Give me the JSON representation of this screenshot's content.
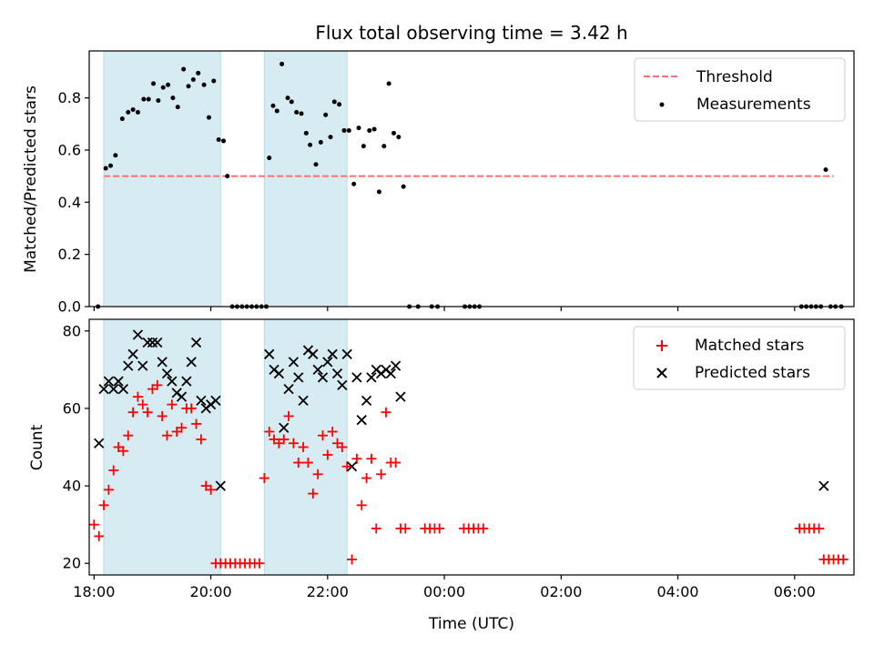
{
  "chart_data": {
    "title": "Flux total observing time = 3.42 h",
    "xlabel": "Time (UTC)",
    "x_ticks": [
      "18:00",
      "20:00",
      "22:00",
      "00:00",
      "02:00",
      "04:00",
      "06:00"
    ],
    "xlim": [
      "17:55",
      "07:01"
    ],
    "observing_windows": [
      [
        "18:10",
        "20:10"
      ],
      [
        "20:55",
        "22:20"
      ]
    ],
    "colors": {
      "window": "#add8e6",
      "threshold": "#ff6f6f",
      "measurements": "#000000",
      "matched": "#ff0000",
      "predicted": "#000000"
    },
    "panels": [
      {
        "type": "scatter",
        "ylabel": "Matched/Predicted stars",
        "ylim": [
          0,
          0.98
        ],
        "y_ticks": [
          "0.0",
          "0.2",
          "0.4",
          "0.6",
          "0.8"
        ],
        "legend": {
          "placement": "top-right",
          "entries": [
            "Threshold",
            "Measurements"
          ]
        },
        "threshold": {
          "name": "Threshold",
          "value": 0.5,
          "x_start": "18:10",
          "x_end": "06:40"
        },
        "series": [
          {
            "name": "Measurements",
            "marker": "dot",
            "x": [
              "18:04",
              "18:12",
              "18:17",
              "18:22",
              "18:29",
              "18:35",
              "18:40",
              "18:45",
              "18:51",
              "18:56",
              "19:01",
              "19:06",
              "19:11",
              "19:16",
              "19:21",
              "19:26",
              "19:32",
              "19:37",
              "19:42",
              "19:47",
              "19:53",
              "19:58",
              "20:03",
              "20:08",
              "20:13",
              "20:17",
              "20:22",
              "20:27",
              "20:32",
              "20:37",
              "20:42",
              "20:47",
              "20:52",
              "20:57",
              "21:00",
              "21:04",
              "21:08",
              "21:13",
              "21:19",
              "21:23",
              "21:28",
              "21:33",
              "21:38",
              "21:42",
              "21:48",
              "21:53",
              "21:58",
              "22:03",
              "22:07",
              "22:12",
              "22:17",
              "22:22",
              "22:27",
              "22:32",
              "22:37",
              "22:43",
              "22:48",
              "22:53",
              "22:58",
              "23:03",
              "23:08",
              "23:13",
              "23:18",
              "23:24",
              "23:33",
              "23:47",
              "23:53",
              "00:21",
              "00:26",
              "00:31",
              "00:36",
              "06:07",
              "06:12",
              "06:17",
              "06:22",
              "06:27",
              "06:32",
              "06:37",
              "06:42",
              "06:48"
            ],
            "y": [
              0.0,
              0.53,
              0.54,
              0.58,
              0.72,
              0.745,
              0.755,
              0.745,
              0.795,
              0.795,
              0.855,
              0.79,
              0.84,
              0.85,
              0.8,
              0.765,
              0.91,
              0.845,
              0.87,
              0.895,
              0.85,
              0.725,
              0.865,
              0.64,
              0.635,
              0.5,
              0.0,
              0.0,
              0.0,
              0.0,
              0.0,
              0.0,
              0.0,
              0.0,
              0.57,
              0.77,
              0.75,
              0.93,
              0.8,
              0.785,
              0.745,
              0.74,
              0.665,
              0.62,
              0.545,
              0.63,
              0.735,
              0.65,
              0.785,
              0.775,
              0.675,
              0.675,
              0.47,
              0.685,
              0.615,
              0.675,
              0.68,
              0.44,
              0.615,
              0.855,
              0.665,
              0.65,
              0.46,
              0.0,
              0.0,
              0.0,
              0.0,
              0.0,
              0.0,
              0.0,
              0.0,
              0.0,
              0.0,
              0.0,
              0.0,
              0.0,
              0.525,
              0.0,
              0.0,
              0.0
            ]
          }
        ]
      },
      {
        "type": "scatter",
        "ylabel": "Count",
        "ylim": [
          17,
          83
        ],
        "y_ticks": [
          "20",
          "40",
          "60",
          "80"
        ],
        "legend": {
          "placement": "top-right",
          "entries": [
            "Matched stars",
            "Predicted stars"
          ]
        },
        "series": [
          {
            "name": "Matched stars",
            "marker": "plus",
            "x": [
              "18:00",
              "18:05",
              "18:10",
              "18:15",
              "18:20",
              "18:25",
              "18:30",
              "18:35",
              "18:40",
              "18:45",
              "18:50",
              "18:55",
              "19:00",
              "19:05",
              "19:10",
              "19:15",
              "19:20",
              "19:25",
              "19:30",
              "19:35",
              "19:40",
              "19:45",
              "19:50",
              "19:55",
              "20:00",
              "20:05",
              "20:10",
              "20:15",
              "20:20",
              "20:25",
              "20:30",
              "20:35",
              "20:40",
              "20:45",
              "20:50",
              "20:55",
              "21:00",
              "21:05",
              "21:10",
              "21:15",
              "21:20",
              "21:25",
              "21:30",
              "21:35",
              "21:40",
              "21:45",
              "21:50",
              "21:55",
              "22:00",
              "22:05",
              "22:10",
              "22:15",
              "22:20",
              "22:25",
              "22:30",
              "22:35",
              "22:40",
              "22:45",
              "22:50",
              "22:55",
              "23:00",
              "23:05",
              "23:10",
              "23:15",
              "23:20",
              "23:40",
              "23:45",
              "23:50",
              "23:55",
              "00:20",
              "00:25",
              "00:30",
              "00:35",
              "00:40",
              "06:05",
              "06:10",
              "06:15",
              "06:20",
              "06:25",
              "06:30",
              "06:35",
              "06:40",
              "06:45",
              "06:50"
            ],
            "y": [
              30,
              27,
              35,
              39,
              44,
              50,
              49,
              53,
              59,
              63,
              61,
              59,
              65,
              66,
              58,
              53,
              61,
              54,
              55,
              60,
              60,
              56,
              52,
              40,
              39,
              20,
              20,
              20,
              20,
              20,
              20,
              20,
              20,
              20,
              20,
              42,
              54,
              52,
              51,
              52,
              58,
              51,
              46,
              50,
              46,
              38,
              43,
              53,
              48,
              54,
              51,
              50,
              45,
              21,
              47,
              35,
              42,
              47,
              29,
              43,
              59,
              46,
              46,
              29,
              29,
              29,
              29,
              29,
              29,
              29,
              29,
              29,
              29,
              29,
              29,
              29,
              29,
              29,
              29,
              21,
              21,
              21,
              21,
              21
            ]
          },
          {
            "name": "Predicted stars",
            "marker": "x",
            "x": [
              "18:05",
              "18:10",
              "18:15",
              "18:20",
              "18:25",
              "18:30",
              "18:35",
              "18:40",
              "18:45",
              "18:50",
              "18:55",
              "19:00",
              "19:05",
              "19:10",
              "19:15",
              "19:20",
              "19:25",
              "19:30",
              "19:35",
              "19:40",
              "19:45",
              "19:50",
              "19:55",
              "20:00",
              "20:05",
              "20:10",
              "21:00",
              "21:05",
              "21:10",
              "21:15",
              "21:20",
              "21:25",
              "21:30",
              "21:35",
              "21:40",
              "21:45",
              "21:50",
              "21:55",
              "22:00",
              "22:05",
              "22:10",
              "22:15",
              "22:20",
              "22:25",
              "22:30",
              "22:35",
              "22:40",
              "22:45",
              "22:50",
              "22:55",
              "23:00",
              "23:05",
              "23:10",
              "23:15",
              "06:30"
            ],
            "y": [
              51,
              65,
              67,
              65,
              67,
              65,
              71,
              74,
              79,
              71,
              77,
              77,
              77,
              72,
              69,
              67,
              64,
              63,
              67,
              72,
              77,
              62,
              60,
              61,
              62,
              40,
              74,
              70,
              69,
              55,
              65,
              72,
              68,
              62,
              75,
              74,
              70,
              68,
              72,
              74,
              69,
              66,
              74,
              45,
              68,
              57,
              62,
              68,
              70,
              69,
              70,
              69,
              71,
              63,
              40
            ]
          }
        ]
      }
    ]
  }
}
